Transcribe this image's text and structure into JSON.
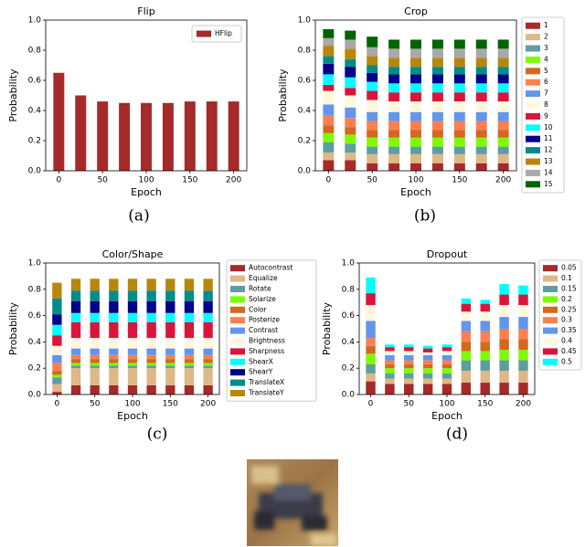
{
  "chart_data": [
    {
      "type": "bar",
      "title": "Flip",
      "xlabel": "Epoch",
      "ylabel": "Probability",
      "caption": "(a)",
      "x": [
        0,
        25,
        50,
        75,
        100,
        125,
        150,
        175,
        200
      ],
      "series": [
        {
          "name": "HFlip",
          "color": "#a52a2a",
          "values": [
            0.65,
            0.5,
            0.46,
            0.45,
            0.45,
            0.45,
            0.46,
            0.46,
            0.46
          ]
        }
      ],
      "xlim": [
        -15,
        215
      ],
      "xticks": [
        0,
        50,
        100,
        150,
        200
      ],
      "ylim": [
        0,
        1
      ],
      "yticks": [
        {
          "value": 0,
          "label": "0.0"
        },
        0.2,
        0.4,
        0.6,
        0.8,
        {
          "value": 1,
          "label": "1.0"
        }
      ],
      "legend": "upper right"
    },
    {
      "type": "stacked_bar",
      "title": "Crop",
      "xlabel": "Epoch",
      "ylabel": "Probability",
      "caption": "(b)",
      "x": [
        0,
        25,
        50,
        75,
        100,
        125,
        150,
        175,
        200
      ],
      "series": [
        {
          "name": "1",
          "color": "#a52a2a",
          "values": [
            0.07,
            0.07,
            0.05,
            0.05,
            0.05,
            0.05,
            0.05,
            0.05,
            0.05
          ]
        },
        {
          "name": "2",
          "color": "#deb887",
          "values": [
            0.05,
            0.05,
            0.06,
            0.06,
            0.06,
            0.06,
            0.06,
            0.06,
            0.06
          ]
        },
        {
          "name": "3",
          "color": "#5f9ea0",
          "values": [
            0.07,
            0.06,
            0.05,
            0.05,
            0.05,
            0.05,
            0.05,
            0.05,
            0.05
          ]
        },
        {
          "name": "4",
          "color": "#7cfc00",
          "values": [
            0.06,
            0.06,
            0.06,
            0.06,
            0.06,
            0.06,
            0.06,
            0.06,
            0.06
          ]
        },
        {
          "name": "5",
          "color": "#d2691e",
          "values": [
            0.05,
            0.05,
            0.05,
            0.05,
            0.05,
            0.05,
            0.05,
            0.05,
            0.05
          ]
        },
        {
          "name": "6",
          "color": "#ff7f50",
          "values": [
            0.07,
            0.06,
            0.06,
            0.06,
            0.06,
            0.06,
            0.06,
            0.06,
            0.06
          ]
        },
        {
          "name": "7",
          "color": "#6495ed",
          "values": [
            0.07,
            0.07,
            0.06,
            0.06,
            0.06,
            0.06,
            0.06,
            0.06,
            0.06
          ]
        },
        {
          "name": "8",
          "color": "#fff8dc",
          "values": [
            0.09,
            0.08,
            0.08,
            0.07,
            0.07,
            0.07,
            0.07,
            0.07,
            0.07
          ]
        },
        {
          "name": "9",
          "color": "#dc143c",
          "values": [
            0.04,
            0.05,
            0.06,
            0.06,
            0.06,
            0.06,
            0.06,
            0.06,
            0.06
          ]
        },
        {
          "name": "10",
          "color": "#00ffff",
          "values": [
            0.07,
            0.07,
            0.06,
            0.06,
            0.06,
            0.06,
            0.06,
            0.06,
            0.06
          ]
        },
        {
          "name": "11",
          "color": "#00008b",
          "values": [
            0.07,
            0.07,
            0.06,
            0.06,
            0.06,
            0.06,
            0.06,
            0.06,
            0.06
          ]
        },
        {
          "name": "12",
          "color": "#008b8b",
          "values": [
            0.05,
            0.05,
            0.05,
            0.05,
            0.05,
            0.05,
            0.05,
            0.05,
            0.05
          ]
        },
        {
          "name": "13",
          "color": "#b8860b",
          "values": [
            0.07,
            0.07,
            0.06,
            0.06,
            0.06,
            0.06,
            0.06,
            0.06,
            0.06
          ]
        },
        {
          "name": "14",
          "color": "#a9a9a9",
          "values": [
            0.05,
            0.06,
            0.06,
            0.06,
            0.06,
            0.06,
            0.06,
            0.06,
            0.06
          ]
        },
        {
          "name": "15",
          "color": "#006400",
          "values": [
            0.06,
            0.06,
            0.07,
            0.06,
            0.06,
            0.06,
            0.06,
            0.06,
            0.06
          ]
        }
      ],
      "xlim": [
        -15,
        215
      ],
      "xticks": [
        0,
        50,
        100,
        150,
        200
      ],
      "ylim": [
        0,
        1
      ],
      "yticks": [
        {
          "value": 0,
          "label": "0.0"
        },
        0.2,
        0.4,
        0.6,
        0.8,
        {
          "value": 1,
          "label": "1.0"
        }
      ],
      "legend": "outside right"
    },
    {
      "type": "stacked_bar",
      "title": "Color/Shape",
      "xlabel": "Epoch",
      "ylabel": "Probability",
      "caption": "(c)",
      "x": [
        0,
        25,
        50,
        75,
        100,
        125,
        150,
        175,
        200
      ],
      "series": [
        {
          "name": "Autocontrast",
          "color": "#a52a2a",
          "values": [
            0.02,
            0.07,
            0.07,
            0.07,
            0.07,
            0.07,
            0.07,
            0.07,
            0.07
          ]
        },
        {
          "name": "Equalize",
          "color": "#deb887",
          "values": [
            0.06,
            0.13,
            0.13,
            0.13,
            0.13,
            0.13,
            0.13,
            0.13,
            0.13
          ]
        },
        {
          "name": "Rotate",
          "color": "#5f9ea0",
          "values": [
            0.05,
            0.02,
            0.02,
            0.02,
            0.02,
            0.02,
            0.02,
            0.02,
            0.02
          ]
        },
        {
          "name": "Solarize",
          "color": "#7cfc00",
          "values": [
            0.02,
            0.02,
            0.02,
            0.02,
            0.02,
            0.02,
            0.02,
            0.02,
            0.02
          ]
        },
        {
          "name": "Color",
          "color": "#d2691e",
          "values": [
            0.03,
            0.03,
            0.03,
            0.03,
            0.03,
            0.03,
            0.03,
            0.03,
            0.03
          ]
        },
        {
          "name": "Posterize",
          "color": "#ff7f50",
          "values": [
            0.06,
            0.03,
            0.03,
            0.03,
            0.03,
            0.03,
            0.03,
            0.03,
            0.03
          ]
        },
        {
          "name": "Contrast",
          "color": "#6495ed",
          "values": [
            0.06,
            0.05,
            0.05,
            0.05,
            0.05,
            0.05,
            0.05,
            0.05,
            0.05
          ]
        },
        {
          "name": "Brightness",
          "color": "#fff8dc",
          "values": [
            0.07,
            0.08,
            0.08,
            0.08,
            0.08,
            0.08,
            0.08,
            0.08,
            0.08
          ]
        },
        {
          "name": "Sharpness",
          "color": "#dc143c",
          "values": [
            0.08,
            0.12,
            0.12,
            0.12,
            0.12,
            0.12,
            0.12,
            0.12,
            0.12
          ]
        },
        {
          "name": "ShearX",
          "color": "#00ffff",
          "values": [
            0.08,
            0.07,
            0.07,
            0.07,
            0.07,
            0.07,
            0.07,
            0.07,
            0.07
          ]
        },
        {
          "name": "ShearY",
          "color": "#00008b",
          "values": [
            0.08,
            0.09,
            0.09,
            0.09,
            0.09,
            0.09,
            0.09,
            0.09,
            0.09
          ]
        },
        {
          "name": "TranslateX",
          "color": "#008b8b",
          "values": [
            0.12,
            0.08,
            0.08,
            0.08,
            0.08,
            0.08,
            0.08,
            0.08,
            0.08
          ]
        },
        {
          "name": "TranslateY",
          "color": "#b8860b",
          "values": [
            0.12,
            0.09,
            0.09,
            0.09,
            0.09,
            0.09,
            0.09,
            0.09,
            0.09
          ]
        }
      ],
      "xlim": [
        -15,
        215
      ],
      "xticks": [
        0,
        50,
        100,
        150,
        200
      ],
      "ylim": [
        0,
        1
      ],
      "yticks": [
        {
          "value": 0,
          "label": "0.0"
        },
        0.2,
        0.4,
        0.6,
        0.8,
        {
          "value": 1,
          "label": "1.0"
        }
      ],
      "legend": "outside right"
    },
    {
      "type": "stacked_bar",
      "title": "Dropout",
      "xlabel": "Epoch",
      "ylabel": "Probability",
      "caption": "(d)",
      "x": [
        0,
        25,
        50,
        75,
        100,
        125,
        150,
        175,
        200
      ],
      "series": [
        {
          "name": "0.05",
          "color": "#a52a2a",
          "values": [
            0.1,
            0.08,
            0.08,
            0.08,
            0.08,
            0.09,
            0.09,
            0.09,
            0.09
          ]
        },
        {
          "name": "0.1",
          "color": "#deb887",
          "values": [
            0.06,
            0.04,
            0.04,
            0.04,
            0.04,
            0.09,
            0.09,
            0.09,
            0.09
          ]
        },
        {
          "name": "0.15",
          "color": "#5f9ea0",
          "values": [
            0.07,
            0.04,
            0.04,
            0.04,
            0.04,
            0.08,
            0.08,
            0.08,
            0.08
          ]
        },
        {
          "name": "0.2",
          "color": "#7cfc00",
          "values": [
            0.08,
            0.04,
            0.04,
            0.04,
            0.04,
            0.07,
            0.07,
            0.08,
            0.08
          ]
        },
        {
          "name": "0.25",
          "color": "#d2691e",
          "values": [
            0.06,
            0.03,
            0.03,
            0.03,
            0.03,
            0.07,
            0.07,
            0.08,
            0.08
          ]
        },
        {
          "name": "0.3",
          "color": "#ff7f50",
          "values": [
            0.06,
            0.03,
            0.03,
            0.03,
            0.03,
            0.08,
            0.08,
            0.08,
            0.08
          ]
        },
        {
          "name": "0.35",
          "color": "#6495ed",
          "values": [
            0.13,
            0.04,
            0.04,
            0.04,
            0.04,
            0.08,
            0.08,
            0.09,
            0.09
          ]
        },
        {
          "name": "0.4",
          "color": "#fff8dc",
          "values": [
            0.12,
            0.03,
            0.03,
            0.02,
            0.03,
            0.07,
            0.07,
            0.09,
            0.09
          ]
        },
        {
          "name": "0.45",
          "color": "#dc143c",
          "values": [
            0.09,
            0.03,
            0.03,
            0.03,
            0.03,
            0.06,
            0.06,
            0.08,
            0.08
          ]
        },
        {
          "name": "0.5",
          "color": "#00ffff",
          "values": [
            0.12,
            0.02,
            0.02,
            0.02,
            0.02,
            0.04,
            0.03,
            0.08,
            0.07
          ]
        }
      ],
      "xlim": [
        -15,
        215
      ],
      "xticks": [
        0,
        50,
        100,
        150,
        200
      ],
      "ylim": [
        0,
        1
      ],
      "yticks": [
        {
          "value": 0,
          "label": "0.0"
        },
        0.2,
        0.4,
        0.6,
        0.8,
        {
          "value": 1,
          "label": "1.0"
        }
      ],
      "legend": "outside right"
    }
  ]
}
